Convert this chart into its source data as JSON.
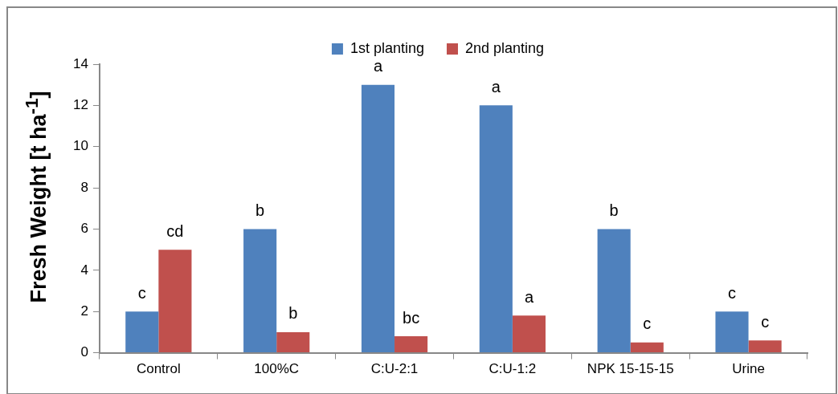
{
  "chart_data": {
    "type": "bar",
    "ylabel": "Fresh Weight [t ha$^{-1}$]",
    "categories": [
      "Control",
      "100%C",
      "C:U-2:1",
      "C:U-1:2",
      "NPK 15-15-15",
      "Urine"
    ],
    "series": [
      {
        "name": "1st planting",
        "color": "#4f81bd",
        "values": [
          2,
          6,
          13,
          12,
          6,
          2
        ],
        "value_labels": [
          "c",
          "b",
          "a",
          "a",
          "b",
          "c"
        ]
      },
      {
        "name": "2nd planting",
        "color": "#c0504d",
        "values": [
          5,
          1,
          0.8,
          1.8,
          0.5,
          0.6
        ],
        "value_labels": [
          "cd",
          "b",
          "bc",
          "a",
          "c",
          "c"
        ]
      }
    ],
    "ylim": [
      0,
      14
    ],
    "yticks": [
      0,
      2,
      4,
      6,
      8,
      10,
      12,
      14
    ],
    "grid": false,
    "legend": "top"
  }
}
